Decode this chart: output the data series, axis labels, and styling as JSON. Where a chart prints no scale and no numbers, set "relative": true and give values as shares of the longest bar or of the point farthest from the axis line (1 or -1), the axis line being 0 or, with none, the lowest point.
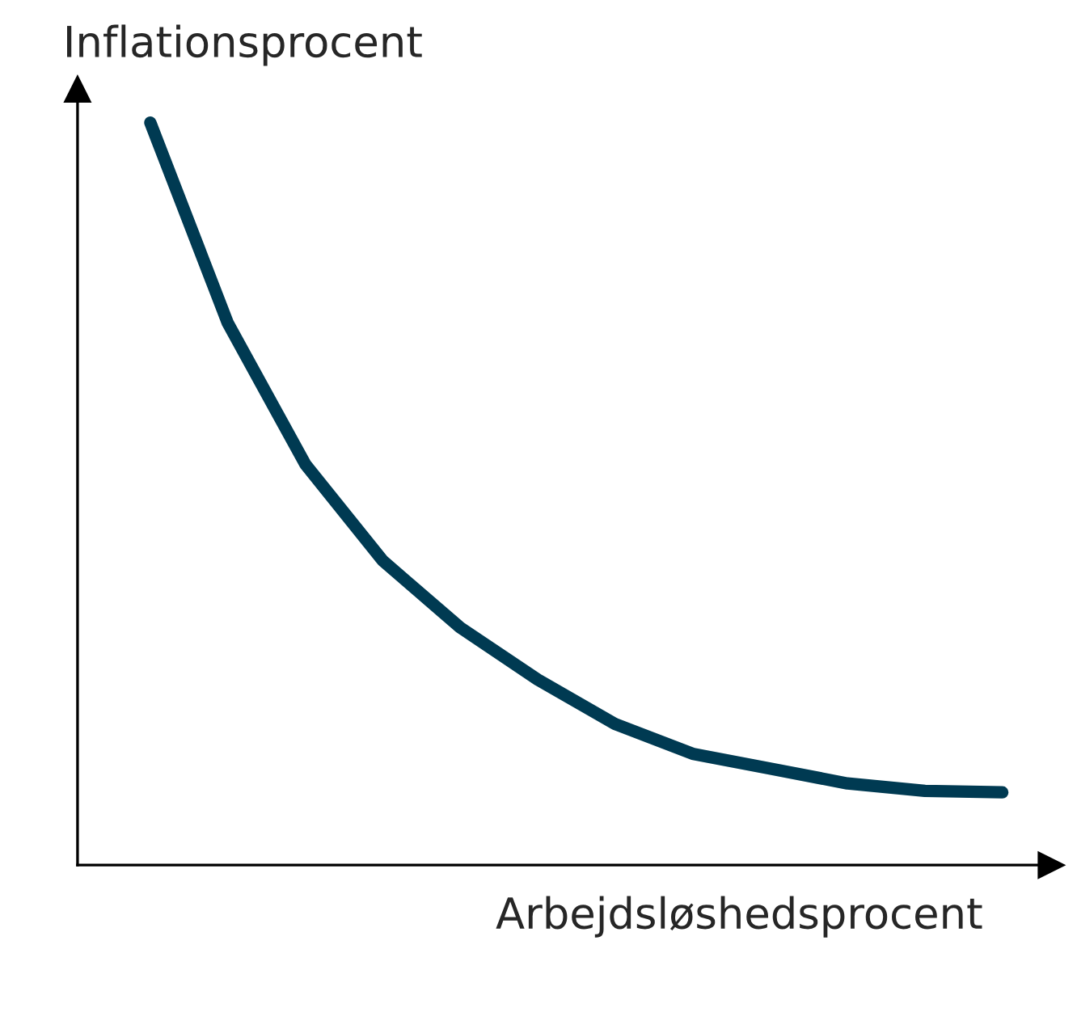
{
  "chart_data": {
    "type": "line",
    "relative": true,
    "xlabel": "Arbejdsløshedsprocent",
    "ylabel": "Inflationsprocent",
    "categories": [
      null,
      null,
      null,
      null,
      null,
      null,
      null,
      null,
      null,
      null,
      null,
      null
    ],
    "series": [
      {
        "color": "#003a52",
        "values": [
          1,
          0.73,
          0.54,
          0.41,
          0.32,
          0.25,
          0.19,
          0.15,
          0.13,
          0.11,
          0.1,
          0.098
        ]
      }
    ],
    "marker": "none",
    "line_style": "solid",
    "legend": false
  }
}
